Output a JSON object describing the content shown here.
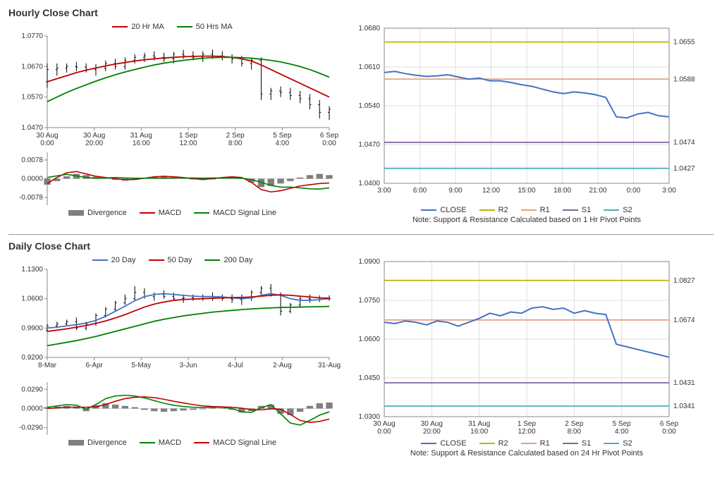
{
  "sections": {
    "hourly": {
      "title": "Hourly Close Chart"
    },
    "daily": {
      "title": "Daily Close Chart"
    }
  },
  "colors": {
    "red": "#c00000",
    "green": "#008000",
    "blue": "#4472c4",
    "yellow": "#b8b800",
    "salmon": "#e8a080",
    "purple": "#8064a2",
    "teal": "#4bacc6",
    "gray": "#7f7f7f",
    "black": "#000000",
    "axis": "#888888",
    "grid": "#dddddd"
  },
  "hourly_main": {
    "type": "line",
    "ylim": [
      1.047,
      1.077
    ],
    "yticks": [
      1.047,
      1.057,
      1.067,
      1.077
    ],
    "xticks": [
      "30 Aug\n0:00",
      "30 Aug\n20:00",
      "31 Aug\n16:00",
      "1 Sep\n12:00",
      "2 Sep\n8:00",
      "5 Sep\n4:00",
      "6 Sep\n0:00"
    ],
    "legend": [
      {
        "label": "20 Hr MA",
        "color": "#c00000"
      },
      {
        "label": "50 Hrs MA",
        "color": "#008000"
      }
    ],
    "series": {
      "ohlc": [
        [
          1.062,
          1.068,
          1.06,
          1.066
        ],
        [
          1.066,
          1.068,
          1.064,
          1.0665
        ],
        [
          1.0665,
          1.068,
          1.065,
          1.067
        ],
        [
          1.067,
          1.0685,
          1.0655,
          1.0668
        ],
        [
          1.0668,
          1.068,
          1.065,
          1.066
        ],
        [
          1.066,
          1.0678,
          1.064,
          1.0665
        ],
        [
          1.0665,
          1.069,
          1.0655,
          1.068
        ],
        [
          1.068,
          1.0695,
          1.066,
          1.067
        ],
        [
          1.067,
          1.07,
          1.066,
          1.069
        ],
        [
          1.069,
          1.071,
          1.068,
          1.07
        ],
        [
          1.07,
          1.0715,
          1.0685,
          1.0705
        ],
        [
          1.0705,
          1.072,
          1.069,
          1.07
        ],
        [
          1.07,
          1.0715,
          1.0685,
          1.0695
        ],
        [
          1.0695,
          1.0718,
          1.068,
          1.071
        ],
        [
          1.071,
          1.0725,
          1.0695,
          1.0705
        ],
        [
          1.0705,
          1.072,
          1.069,
          1.07
        ],
        [
          1.07,
          1.072,
          1.0685,
          1.071
        ],
        [
          1.071,
          1.0725,
          1.0695,
          1.0705
        ],
        [
          1.0705,
          1.072,
          1.069,
          1.07
        ],
        [
          1.07,
          1.071,
          1.068,
          1.0695
        ],
        [
          1.0695,
          1.0705,
          1.067,
          1.068
        ],
        [
          1.068,
          1.07,
          1.066,
          1.069
        ],
        [
          1.069,
          1.07,
          1.056,
          1.058
        ],
        [
          1.058,
          1.06,
          1.056,
          1.059
        ],
        [
          1.059,
          1.0605,
          1.057,
          1.0585
        ],
        [
          1.0585,
          1.06,
          1.056,
          1.0575
        ],
        [
          1.0575,
          1.059,
          1.055,
          1.0565
        ],
        [
          1.0565,
          1.058,
          1.053,
          1.0545
        ],
        [
          1.0545,
          1.056,
          1.05,
          1.052
        ],
        [
          1.052,
          1.054,
          1.0495,
          1.053
        ]
      ],
      "ma20": [
        1.062,
        1.063,
        1.064,
        1.065,
        1.0658,
        1.0665,
        1.0672,
        1.0678,
        1.0683,
        1.0688,
        1.0692,
        1.0695,
        1.0698,
        1.07,
        1.0702,
        1.0703,
        1.0704,
        1.0704,
        1.0703,
        1.07,
        1.0695,
        1.0688,
        1.0675,
        1.066,
        1.0645,
        1.063,
        1.0615,
        1.06,
        1.0585,
        1.057
      ],
      "ma50": [
        1.0555,
        1.057,
        1.0585,
        1.0598,
        1.061,
        1.0622,
        1.0633,
        1.0643,
        1.0652,
        1.066,
        1.0668,
        1.0675,
        1.0681,
        1.0686,
        1.069,
        1.0694,
        1.0697,
        1.0699,
        1.07,
        1.07,
        1.0699,
        1.0697,
        1.0694,
        1.069,
        1.0685,
        1.0678,
        1.067,
        1.066,
        1.0648,
        1.0635
      ]
    }
  },
  "hourly_macd": {
    "ylim": [
      -0.011,
      0.011
    ],
    "yticks": [
      -0.0078,
      0.0,
      0.0078
    ],
    "legend": [
      {
        "label": "Divergence",
        "color": "#7f7f7f",
        "thick": true
      },
      {
        "label": "MACD",
        "color": "#c00000"
      },
      {
        "label": "MACD Signal Line",
        "color": "#008000"
      }
    ],
    "divergence": [
      -0.0025,
      -0.001,
      0.001,
      0.002,
      0.0015,
      0.0008,
      0.0002,
      -0.0005,
      -0.0008,
      -0.0005,
      0.0,
      0.0005,
      0.0008,
      0.0005,
      0.0002,
      -0.0003,
      -0.0005,
      -0.0003,
      0.0002,
      0.0005,
      0.0003,
      -0.0015,
      -0.0035,
      -0.003,
      -0.002,
      -0.001,
      0.0005,
      0.0015,
      0.002,
      0.0015
    ],
    "macd": [
      -0.002,
      0.0005,
      0.0025,
      0.003,
      0.002,
      0.001,
      0.0005,
      0.0,
      -0.0005,
      -0.0003,
      0.0002,
      0.0008,
      0.001,
      0.0008,
      0.0005,
      0.0,
      -0.0003,
      0.0,
      0.0005,
      0.0008,
      0.0005,
      -0.0015,
      -0.0045,
      -0.0055,
      -0.005,
      -0.004,
      -0.003,
      -0.0025,
      -0.002,
      -0.0018
    ],
    "signal": [
      0.0005,
      0.0012,
      0.0018,
      0.0012,
      0.0005,
      0.0002,
      0.0003,
      0.0005,
      0.0003,
      0.0002,
      0.0002,
      0.0003,
      0.0002,
      0.0003,
      0.0003,
      0.0003,
      0.0002,
      0.0003,
      0.0003,
      0.0003,
      0.0002,
      -0.0003,
      -0.0015,
      -0.0028,
      -0.0035,
      -0.0035,
      -0.0038,
      -0.0042,
      -0.0043,
      -0.0038
    ]
  },
  "hourly_sr": {
    "type": "line",
    "ylim": [
      1.04,
      1.068
    ],
    "yticks": [
      1.04,
      1.047,
      1.054,
      1.061,
      1.068
    ],
    "xticks": [
      "3:00",
      "6:00",
      "9:00",
      "12:00",
      "15:00",
      "18:00",
      "21:00",
      "0:00",
      "3:00"
    ],
    "levels": [
      {
        "name": "R2",
        "value": 1.0655,
        "color": "#b8b800"
      },
      {
        "name": "R1",
        "value": 1.0588,
        "color": "#e8a080"
      },
      {
        "name": "S1",
        "value": 1.0474,
        "color": "#8064a2"
      },
      {
        "name": "S2",
        "value": 1.0427,
        "color": "#4bacc6"
      }
    ],
    "close": [
      1.06,
      1.0602,
      1.0598,
      1.0595,
      1.0593,
      1.0594,
      1.0596,
      1.0592,
      1.0588,
      1.059,
      1.0585,
      1.0585,
      1.0582,
      1.0578,
      1.0575,
      1.057,
      1.0565,
      1.0562,
      1.0565,
      1.0563,
      1.056,
      1.0555,
      1.052,
      1.0518,
      1.0525,
      1.0528,
      1.0522,
      1.052
    ],
    "legend": [
      {
        "label": "CLOSE",
        "color": "#4472c4"
      },
      {
        "label": "R2",
        "color": "#b8b800"
      },
      {
        "label": "R1",
        "color": "#e8a080"
      },
      {
        "label": "S1",
        "color": "#8064a2"
      },
      {
        "label": "S2",
        "color": "#4bacc6"
      }
    ],
    "note": "Note: Support & Resistance Calculated based on 1 Hr Pivot Points"
  },
  "daily_main": {
    "type": "line",
    "ylim": [
      0.92,
      1.13
    ],
    "yticks": [
      0.92,
      0.99,
      1.06,
      1.13
    ],
    "xticks": [
      "8-Mar",
      "6-Apr",
      "5-May",
      "3-Jun",
      "4-Jul",
      "2-Aug",
      "31-Aug"
    ],
    "legend": [
      {
        "label": "20 Day",
        "color": "#4472c4"
      },
      {
        "label": "50 Day",
        "color": "#c00000"
      },
      {
        "label": "200 Day",
        "color": "#008000"
      }
    ],
    "series": {
      "ohlc": [
        [
          0.985,
          1.0,
          0.98,
          0.995
        ],
        [
          0.995,
          1.005,
          0.99,
          1.0
        ],
        [
          1.0,
          1.01,
          0.995,
          1.005
        ],
        [
          1.005,
          1.015,
          0.985,
          0.99
        ],
        [
          0.99,
          1.005,
          0.985,
          1.0
        ],
        [
          1.0,
          1.025,
          0.995,
          1.02
        ],
        [
          1.02,
          1.04,
          1.015,
          1.035
        ],
        [
          1.035,
          1.055,
          1.03,
          1.05
        ],
        [
          1.05,
          1.07,
          1.045,
          1.06
        ],
        [
          1.06,
          1.09,
          1.055,
          1.075
        ],
        [
          1.075,
          1.085,
          1.06,
          1.065
        ],
        [
          1.065,
          1.075,
          1.055,
          1.07
        ],
        [
          1.07,
          1.08,
          1.06,
          1.065
        ],
        [
          1.065,
          1.075,
          1.055,
          1.06
        ],
        [
          1.06,
          1.07,
          1.05,
          1.062
        ],
        [
          1.062,
          1.07,
          1.055,
          1.06
        ],
        [
          1.06,
          1.07,
          1.055,
          1.065
        ],
        [
          1.065,
          1.075,
          1.055,
          1.062
        ],
        [
          1.062,
          1.07,
          1.055,
          1.06
        ],
        [
          1.06,
          1.07,
          1.05,
          1.058
        ],
        [
          1.058,
          1.07,
          1.045,
          1.062
        ],
        [
          1.062,
          1.08,
          1.055,
          1.075
        ],
        [
          1.075,
          1.09,
          1.07,
          1.085
        ],
        [
          1.085,
          1.095,
          1.065,
          1.07
        ],
        [
          1.07,
          1.075,
          1.02,
          1.03
        ],
        [
          1.03,
          1.05,
          1.025,
          1.045
        ],
        [
          1.045,
          1.065,
          1.04,
          1.06
        ],
        [
          1.06,
          1.07,
          1.05,
          1.058
        ],
        [
          1.058,
          1.068,
          1.052,
          1.062
        ],
        [
          1.062,
          1.068,
          1.055,
          1.06
        ]
      ],
      "ma20": [
        0.99,
        0.992,
        0.995,
        0.998,
        1.002,
        1.008,
        1.018,
        1.03,
        1.042,
        1.055,
        1.065,
        1.07,
        1.072,
        1.07,
        1.068,
        1.066,
        1.065,
        1.065,
        1.064,
        1.062,
        1.06,
        1.062,
        1.068,
        1.072,
        1.068,
        1.06,
        1.056,
        1.056,
        1.058,
        1.06
      ],
      "ma50": [
        0.982,
        0.985,
        0.988,
        0.992,
        0.996,
        1.001,
        1.007,
        1.014,
        1.022,
        1.031,
        1.04,
        1.047,
        1.052,
        1.056,
        1.058,
        1.059,
        1.06,
        1.061,
        1.062,
        1.0625,
        1.063,
        1.064,
        1.066,
        1.068,
        1.069,
        1.068,
        1.066,
        1.064,
        1.062,
        1.061
      ],
      "ma200": [
        0.948,
        0.952,
        0.956,
        0.96,
        0.965,
        0.97,
        0.976,
        0.982,
        0.988,
        0.994,
        1.0,
        1.006,
        1.011,
        1.015,
        1.019,
        1.022,
        1.025,
        1.028,
        1.03,
        1.032,
        1.034,
        1.0355,
        1.037,
        1.038,
        1.039,
        1.0395,
        1.04,
        1.0405,
        1.041,
        1.0415
      ]
    }
  },
  "daily_macd": {
    "ylim": [
      -0.04,
      0.04
    ],
    "yticks": [
      -0.029,
      0.0,
      0.029
    ],
    "legend": [
      {
        "label": "Divergence",
        "color": "#7f7f7f",
        "thick": true
      },
      {
        "label": "MACD",
        "color": "#008000"
      },
      {
        "label": "MACD Signal Line",
        "color": "#c00000"
      }
    ],
    "divergence": [
      0.002,
      0.003,
      0.004,
      0.003,
      -0.004,
      0.005,
      0.008,
      0.006,
      0.004,
      0.002,
      -0.002,
      -0.004,
      -0.005,
      -0.004,
      -0.003,
      -0.002,
      -0.001,
      0.001,
      0.0005,
      -0.002,
      -0.006,
      -0.004,
      0.004,
      0.006,
      -0.008,
      -0.01,
      -0.005,
      0.004,
      0.008,
      0.009
    ],
    "macd": [
      0.002,
      0.004,
      0.006,
      0.005,
      -0.001,
      0.006,
      0.015,
      0.019,
      0.02,
      0.019,
      0.016,
      0.012,
      0.008,
      0.005,
      0.003,
      0.002,
      0.0015,
      0.002,
      0.0018,
      0.0,
      -0.005,
      -0.006,
      0.001,
      0.006,
      -0.008,
      -0.022,
      -0.025,
      -0.018,
      -0.01,
      -0.005
    ],
    "signal": [
      0.0,
      0.001,
      0.002,
      0.002,
      0.002,
      0.0025,
      0.006,
      0.011,
      0.015,
      0.017,
      0.0175,
      0.0165,
      0.014,
      0.011,
      0.0085,
      0.006,
      0.004,
      0.003,
      0.0025,
      0.002,
      0.0005,
      -0.0015,
      -0.002,
      -0.0005,
      -0.001,
      -0.009,
      -0.018,
      -0.021,
      -0.0195,
      -0.016
    ]
  },
  "daily_sr": {
    "type": "line",
    "ylim": [
      1.03,
      1.09
    ],
    "yticks": [
      1.03,
      1.045,
      1.06,
      1.075,
      1.09
    ],
    "xticks": [
      "30 Aug\n0:00",
      "30 Aug\n20:00",
      "31 Aug\n16:00",
      "1 Sep\n12:00",
      "2 Sep\n8:00",
      "5 Sep\n4:00",
      "6 Sep\n0:00"
    ],
    "levels": [
      {
        "name": "R2",
        "value": 1.0827,
        "color": "#b8b800"
      },
      {
        "name": "R1",
        "value": 1.0674,
        "color": "#e8a080"
      },
      {
        "name": "S1",
        "value": 1.0431,
        "color": "#8064a2"
      },
      {
        "name": "S2",
        "value": 1.0341,
        "color": "#4bacc6"
      }
    ],
    "close": [
      1.0665,
      1.066,
      1.067,
      1.0665,
      1.0655,
      1.067,
      1.0665,
      1.065,
      1.0665,
      1.068,
      1.07,
      1.069,
      1.0705,
      1.07,
      1.072,
      1.0725,
      1.0715,
      1.072,
      1.07,
      1.071,
      1.07,
      1.0695,
      1.058,
      1.057,
      1.056,
      1.055,
      1.054,
      1.053
    ],
    "legend": [
      {
        "label": "CLOSE",
        "color": "#4472c4"
      },
      {
        "label": "R2",
        "color": "#b8b800"
      },
      {
        "label": "R1",
        "color": "#e8a080"
      },
      {
        "label": "S1",
        "color": "#8064a2"
      },
      {
        "label": "S2",
        "color": "#4bacc6"
      }
    ],
    "note": "Note: Support & Resistance Calculated based on 24 Hr Pivot Points"
  }
}
